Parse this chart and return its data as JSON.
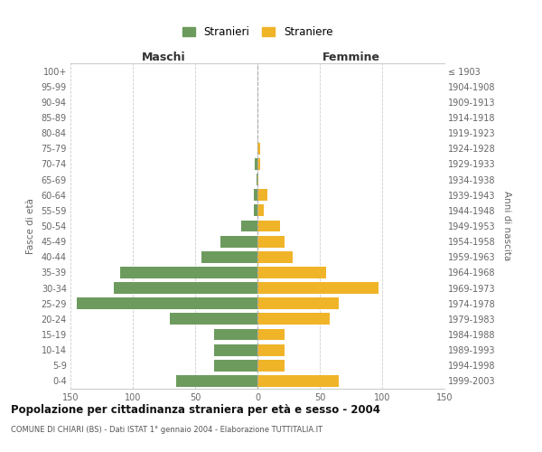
{
  "age_groups": [
    "0-4",
    "5-9",
    "10-14",
    "15-19",
    "20-24",
    "25-29",
    "30-34",
    "35-39",
    "40-44",
    "45-49",
    "50-54",
    "55-59",
    "60-64",
    "65-69",
    "70-74",
    "75-79",
    "80-84",
    "85-89",
    "90-94",
    "95-99",
    "100+"
  ],
  "birth_years": [
    "1999-2003",
    "1994-1998",
    "1989-1993",
    "1984-1988",
    "1979-1983",
    "1974-1978",
    "1969-1973",
    "1964-1968",
    "1959-1963",
    "1954-1958",
    "1949-1953",
    "1944-1948",
    "1939-1943",
    "1934-1938",
    "1929-1933",
    "1924-1928",
    "1919-1923",
    "1914-1918",
    "1909-1913",
    "1904-1908",
    "≤ 1903"
  ],
  "males": [
    65,
    35,
    35,
    35,
    70,
    145,
    115,
    110,
    45,
    30,
    13,
    3,
    3,
    1,
    2,
    0,
    0,
    0,
    0,
    0,
    0
  ],
  "females": [
    65,
    22,
    22,
    22,
    58,
    65,
    97,
    55,
    28,
    22,
    18,
    5,
    8,
    1,
    2,
    2,
    0,
    0,
    0,
    0,
    0
  ],
  "male_color": "#6d9b5e",
  "female_color": "#f0b429",
  "title": "Popolazione per cittadinanza straniera per età e sesso - 2004",
  "subtitle": "COMUNE DI CHIARI (BS) - Dati ISTAT 1° gennaio 2004 - Elaborazione TUTTITALIA.IT",
  "left_label": "Maschi",
  "right_label": "Femmine",
  "ylabel": "Fasce di età",
  "ylabel_right": "Anni di nascita",
  "legend_male": "Stranieri",
  "legend_female": "Straniere",
  "xlim": 150,
  "grid_color": "#cccccc",
  "bg_color": "#ffffff",
  "border_color": "#cccccc"
}
